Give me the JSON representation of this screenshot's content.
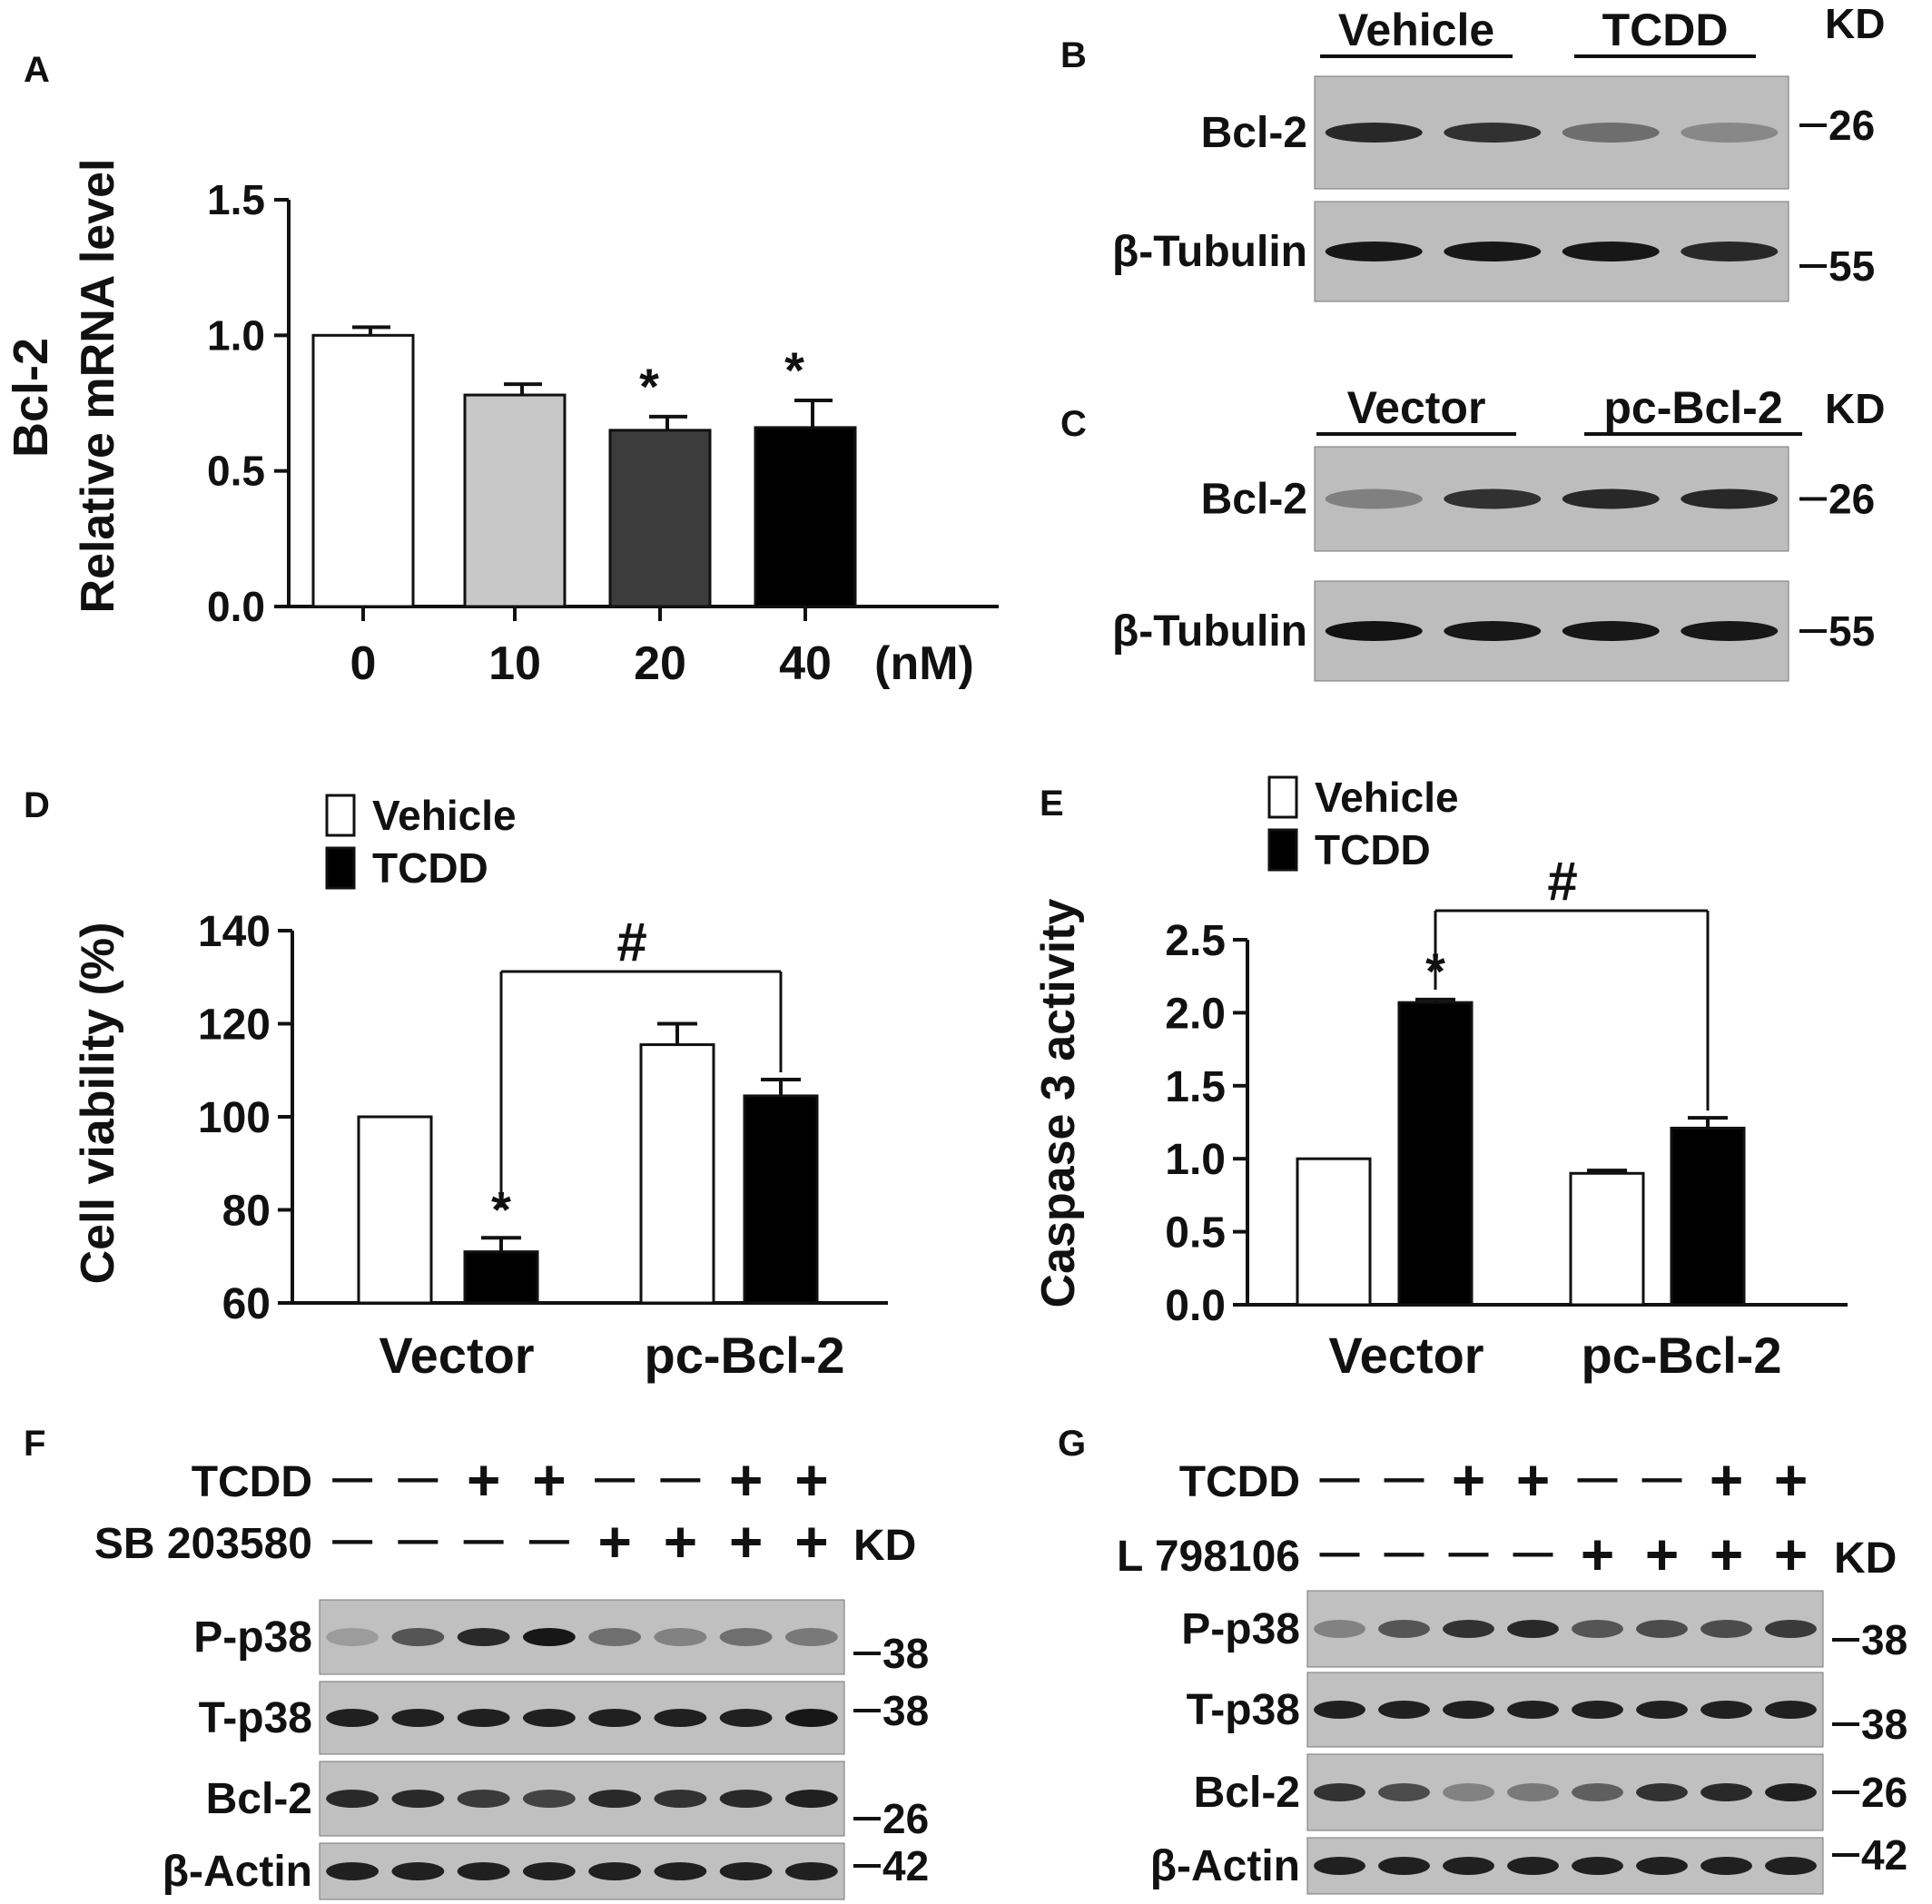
{
  "panels": {
    "A": "A",
    "B": "B",
    "C": "C",
    "D": "D",
    "E": "E",
    "F": "F",
    "G": "G"
  },
  "kd_label": "KD",
  "chart_data": [
    {
      "id": "A",
      "type": "bar",
      "ylabel": [
        "Bcl-2",
        "Relative mRNA level"
      ],
      "categories": [
        "0",
        "10",
        "20",
        "40"
      ],
      "unit": "(nM)",
      "yticks": [
        "0.0",
        "0.5",
        "1.0",
        "1.5"
      ],
      "ylim": [
        0,
        1.5
      ],
      "values": [
        1.0,
        0.78,
        0.65,
        0.66
      ],
      "errors": [
        0.03,
        0.04,
        0.05,
        0.1
      ],
      "colors": [
        "#ffffff",
        "#c8c8c8",
        "#3c3c3c",
        "#000000"
      ],
      "sig": [
        "",
        "",
        "*",
        "*"
      ]
    },
    {
      "id": "D",
      "type": "bar",
      "ylabel": "Cell viability (%)",
      "categories": [
        "Vector",
        "pc-Bcl-2"
      ],
      "legend": [
        "Vehicle",
        "TCDD"
      ],
      "yticks": [
        "60",
        "80",
        "100",
        "120",
        "140"
      ],
      "ylim": [
        60,
        140
      ],
      "series": [
        {
          "name": "Vehicle",
          "values": [
            100,
            115.5
          ],
          "errors": [
            0,
            4.5
          ],
          "color": "#ffffff"
        },
        {
          "name": "TCDD",
          "values": [
            71,
            104.5
          ],
          "errors": [
            3,
            3.5
          ],
          "color": "#000000"
        }
      ],
      "sig_star": "*",
      "sig_hash": "#"
    },
    {
      "id": "E",
      "type": "bar",
      "ylabel": "Caspase 3 activity",
      "categories": [
        "Vector",
        "pc-Bcl-2"
      ],
      "legend": [
        "Vehicle",
        "TCDD"
      ],
      "yticks": [
        "0.0",
        "0.5",
        "1.0",
        "1.5",
        "2.0",
        "2.5"
      ],
      "ylim": [
        0,
        2.5
      ],
      "series": [
        {
          "name": "Vehicle",
          "values": [
            1.0,
            0.9
          ],
          "errors": [
            0,
            0.02
          ],
          "color": "#ffffff"
        },
        {
          "name": "TCDD",
          "values": [
            2.07,
            1.21
          ],
          "errors": [
            0.02,
            0.07
          ],
          "color": "#000000"
        }
      ],
      "sig_star": "*",
      "sig_hash": "#"
    }
  ],
  "blots": {
    "B": {
      "groups": [
        "Vehicle",
        "TCDD"
      ],
      "rows": [
        {
          "label": "Bcl-2",
          "kd": "26",
          "intensity": [
            0.85,
            0.8,
            0.45,
            0.3
          ]
        },
        {
          "label": "β-Tubulin",
          "kd": "55",
          "intensity": [
            0.95,
            0.95,
            0.95,
            0.85
          ]
        }
      ]
    },
    "C": {
      "groups": [
        "Vector",
        "pc-Bcl-2"
      ],
      "rows": [
        {
          "label": "Bcl-2",
          "kd": "26",
          "intensity": [
            0.35,
            0.8,
            0.85,
            0.85
          ]
        },
        {
          "label": "β-Tubulin",
          "kd": "55",
          "intensity": [
            0.98,
            0.95,
            0.95,
            0.95
          ]
        }
      ]
    },
    "F": {
      "conditions": [
        {
          "label": "TCDD",
          "signs": [
            "—",
            "—",
            "+",
            "+",
            "—",
            "—",
            "+",
            "+"
          ]
        },
        {
          "label": "SB 203580",
          "signs": [
            "—",
            "—",
            "—",
            "—",
            "+",
            "+",
            "+",
            "+"
          ]
        }
      ],
      "rows": [
        {
          "label": "P-p38",
          "kd": "38",
          "intensity": [
            0.2,
            0.6,
            0.85,
            0.95,
            0.45,
            0.35,
            0.45,
            0.4
          ]
        },
        {
          "label": "T-p38",
          "kd": "38",
          "intensity": [
            0.9,
            0.9,
            0.9,
            0.9,
            0.9,
            0.9,
            0.9,
            0.95
          ]
        },
        {
          "label": "Bcl-2",
          "kd": "26",
          "intensity": [
            0.85,
            0.85,
            0.75,
            0.7,
            0.85,
            0.8,
            0.85,
            0.9
          ]
        },
        {
          "label": "β-Actin",
          "kd": "42",
          "intensity": [
            0.9,
            0.9,
            0.9,
            0.9,
            0.9,
            0.9,
            0.9,
            0.9
          ]
        }
      ]
    },
    "G": {
      "conditions": [
        {
          "label": "TCDD",
          "signs": [
            "—",
            "—",
            "+",
            "+",
            "—",
            "—",
            "+",
            "+"
          ]
        },
        {
          "label": "L 798106",
          "signs": [
            "—",
            "—",
            "—",
            "—",
            "+",
            "+",
            "+",
            "+"
          ]
        }
      ],
      "rows": [
        {
          "label": "P-p38",
          "kd": "38",
          "intensity": [
            0.35,
            0.6,
            0.8,
            0.85,
            0.6,
            0.65,
            0.65,
            0.75
          ]
        },
        {
          "label": "T-p38",
          "kd": "38",
          "intensity": [
            0.9,
            0.9,
            0.9,
            0.9,
            0.9,
            0.9,
            0.9,
            0.9
          ]
        },
        {
          "label": "Bcl-2",
          "kd": "26",
          "intensity": [
            0.8,
            0.65,
            0.35,
            0.4,
            0.55,
            0.8,
            0.85,
            0.9
          ]
        },
        {
          "label": "β-Actin",
          "kd": "42",
          "intensity": [
            0.9,
            0.9,
            0.9,
            0.9,
            0.9,
            0.9,
            0.9,
            0.9
          ]
        }
      ]
    }
  }
}
